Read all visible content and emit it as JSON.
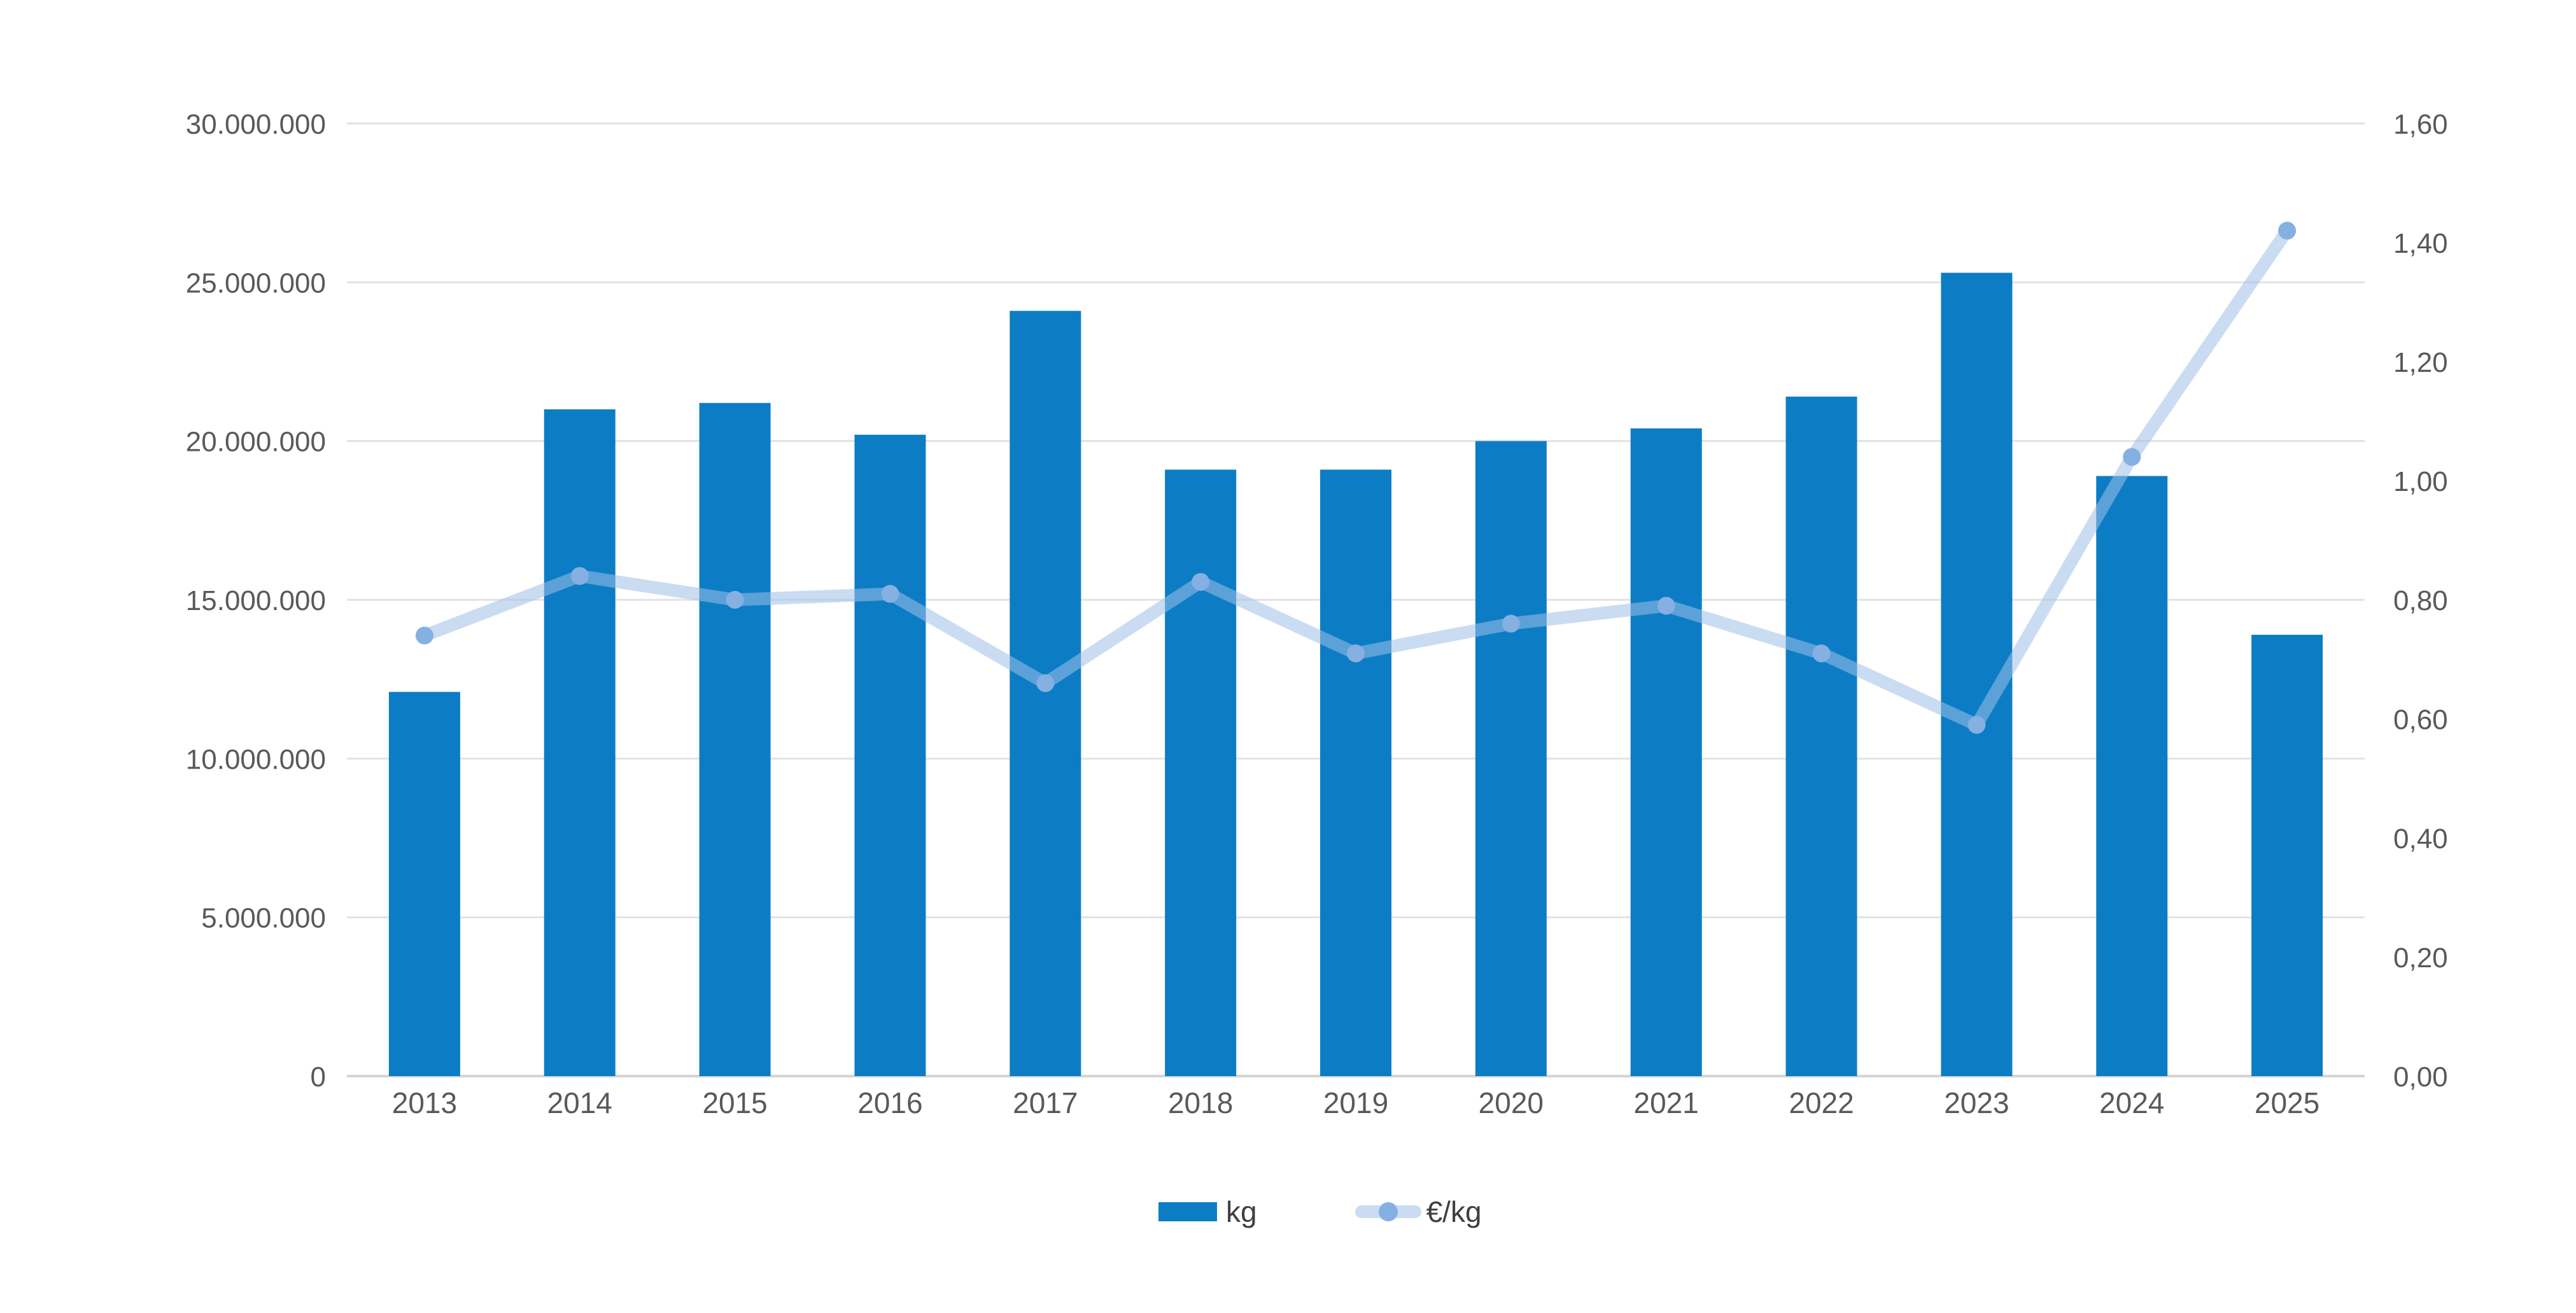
{
  "chart_data": {
    "type": "bar",
    "subtype": "bar-line-combo",
    "categories": [
      "2013",
      "2014",
      "2015",
      "2016",
      "2017",
      "2018",
      "2019",
      "2020",
      "2021",
      "2022",
      "2023",
      "2024",
      "2025"
    ],
    "series": [
      {
        "name": "kg",
        "type": "bar",
        "axis": "left",
        "color": "#0c7dc5",
        "values": [
          12100000,
          21000000,
          21200000,
          20200000,
          24100000,
          19100000,
          19100000,
          20000000,
          20400000,
          21400000,
          25300000,
          18900000,
          13900000
        ]
      },
      {
        "name": "€/kg",
        "type": "line",
        "axis": "right",
        "line_color": "#9ebfe7",
        "line_opacity": 0.55,
        "dot_color": "#86b0e2",
        "values": [
          0.74,
          0.84,
          0.8,
          0.81,
          0.66,
          0.83,
          0.71,
          0.76,
          0.79,
          0.71,
          0.59,
          1.04,
          1.42
        ]
      }
    ],
    "left_axis": {
      "min": 0,
      "max": 30000000,
      "step": 5000000,
      "tick_labels": [
        "0",
        "5.000.000",
        "10.000.000",
        "15.000.000",
        "20.000.000",
        "25.000.000",
        "30.000.000"
      ]
    },
    "right_axis": {
      "min": 0,
      "max": 1.6,
      "step": 0.2,
      "tick_labels": [
        "0,00",
        "0,20",
        "0,40",
        "0,60",
        "0,80",
        "1,00",
        "1,20",
        "1,40",
        "1,60"
      ]
    },
    "grid": true,
    "legend_position": "bottom-center"
  },
  "legend": {
    "items": [
      {
        "label": "kg",
        "swatch": "bar-swatch"
      },
      {
        "label": "€/kg",
        "swatch": "line-dot-swatch"
      }
    ]
  },
  "colors": {
    "background": "#ffffff",
    "bar": "#0c7dc5",
    "line_over_white": "#cadcf2",
    "dot": "#86b0e2",
    "grid_line": "#e2e2e2",
    "axis_baseline": "#d4d4d4",
    "axis_text": "#595959",
    "legend_text": "#3f3f3f"
  }
}
